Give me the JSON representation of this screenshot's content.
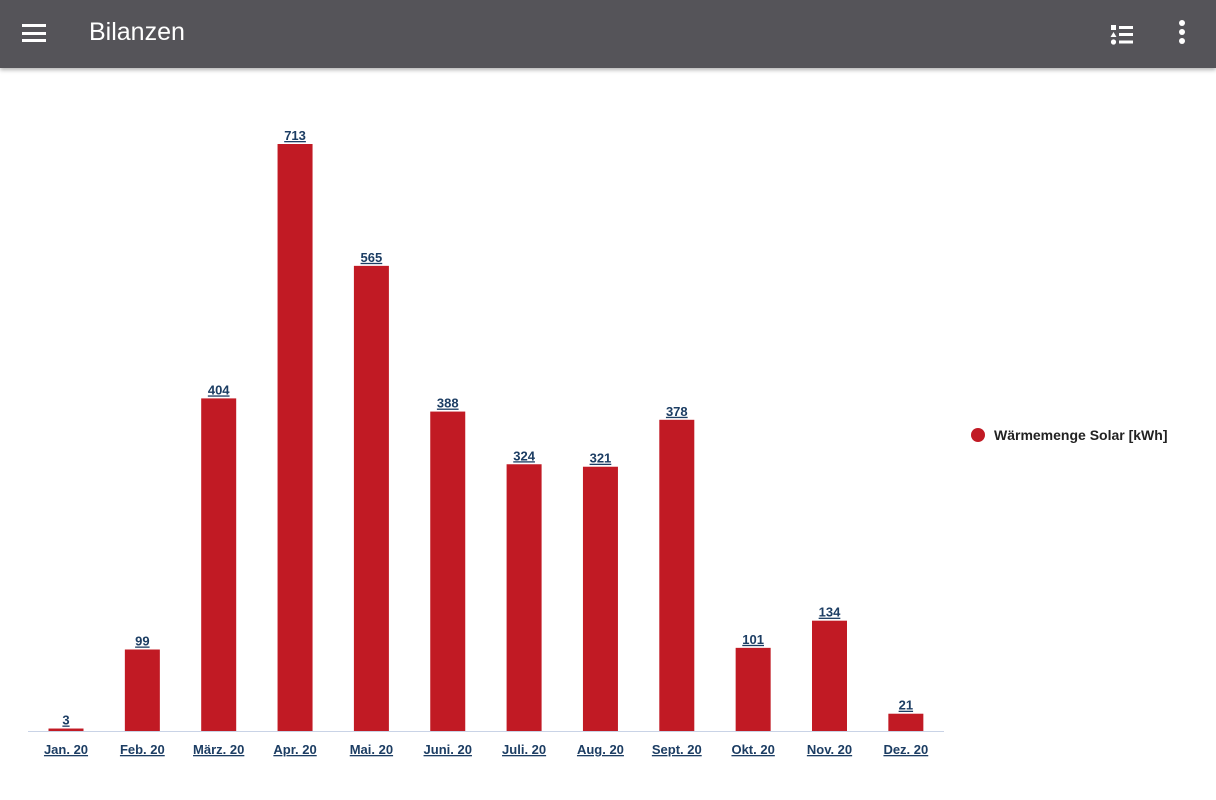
{
  "appbar": {
    "title": "Bilanzen",
    "menu_icon": "hamburger-menu-icon",
    "list_icon": "list-view-icon",
    "more_icon": "more-vertical-icon"
  },
  "chart_data": {
    "type": "bar",
    "categories": [
      "Jan. 20",
      "Feb. 20",
      "März. 20",
      "Apr. 20",
      "Mai. 20",
      "Juni. 20",
      "Juli. 20",
      "Aug. 20",
      "Sept. 20",
      "Okt. 20",
      "Nov. 20",
      "Dez. 20"
    ],
    "series": [
      {
        "name": "Wärmemenge Solar [kWh]",
        "values": [
          3,
          99,
          404,
          713,
          565,
          388,
          324,
          321,
          378,
          101,
          134,
          21
        ],
        "color": "#c11a24"
      }
    ],
    "ylim": [
      0,
      713
    ],
    "grid": false,
    "legend": "right",
    "label_color": "#1c3d63"
  }
}
